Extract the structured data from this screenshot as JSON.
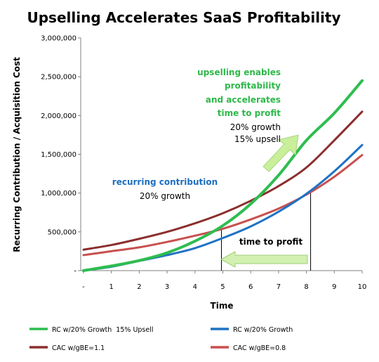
{
  "chart_data": {
    "type": "line",
    "title": "Upselling Accelerates SaaS Profitability",
    "xlabel": "Time",
    "ylabel": "Recurring Contribution / Acquisition Cost",
    "xlim": [
      -0.1,
      10
    ],
    "ylim": [
      0,
      3000000
    ],
    "x_ticks": [
      "-",
      "1",
      "2",
      "3",
      "4",
      "5",
      "6",
      "7",
      "8",
      "9",
      "10"
    ],
    "y_ticks": [
      {
        "value": 0,
        "label": "-"
      },
      {
        "value": 500000,
        "label": "500,000"
      },
      {
        "value": 1000000,
        "label": "1,000,000"
      },
      {
        "value": 1500000,
        "label": "1,500,000"
      },
      {
        "value": 2000000,
        "label": "2,000,000"
      },
      {
        "value": 2500000,
        "label": "2,500,000"
      },
      {
        "value": 3000000,
        "label": "3,000,000"
      }
    ],
    "x": [
      0,
      1,
      2,
      3,
      4,
      5,
      6,
      7,
      8,
      9,
      10
    ],
    "grid": false,
    "legend_position": "bottom",
    "series": [
      {
        "name": "RC w/20% Growth  15% Upsell",
        "color": "#2ebd50",
        "values": [
          0,
          60000,
          130000,
          230000,
          380000,
          580000,
          860000,
          1230000,
          1680000,
          2030000,
          2450000
        ]
      },
      {
        "name": "RC w/20% Growth",
        "color": "#1f72c4",
        "values": [
          0,
          50000,
          125000,
          200000,
          290000,
          420000,
          570000,
          760000,
          990000,
          1280000,
          1620000
        ]
      },
      {
        "name": "CAC w/gBE=1.1",
        "color": "#8b2e2e",
        "values": [
          270000,
          330000,
          410000,
          500000,
          610000,
          740000,
          900000,
          1090000,
          1330000,
          1680000,
          2050000
        ]
      },
      {
        "name": "CAC w/gBE=0.8",
        "color": "#c8504e",
        "values": [
          200000,
          250000,
          300000,
          370000,
          450000,
          540000,
          660000,
          800000,
          980000,
          1210000,
          1490000
        ]
      }
    ],
    "markers": [
      {
        "x": 4.95,
        "y": 540000
      },
      {
        "x": 8.15,
        "y": 1010000
      }
    ],
    "annotations": {
      "upsell_lines": [
        "upselling enables",
        "profitability",
        "and accelerates",
        "time to profit"
      ],
      "upsell_sub": [
        "20% growth",
        "15% upsell"
      ],
      "recurring_title": "recurring contribution",
      "recurring_sub": "20% growth",
      "time_to_profit": "time to profit"
    }
  }
}
